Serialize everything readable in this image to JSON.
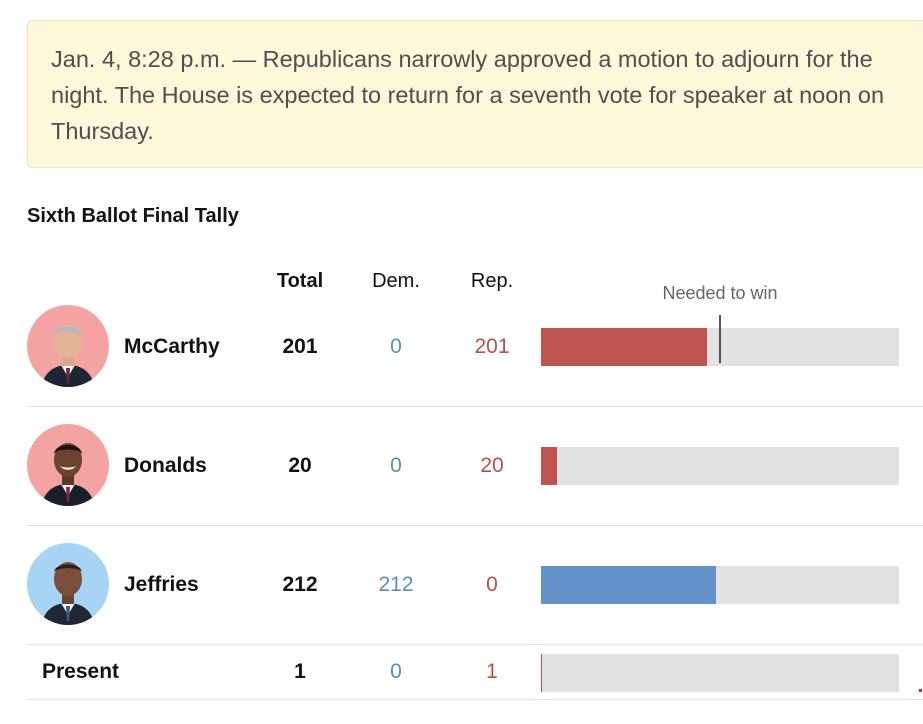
{
  "update": {
    "text": "Jan. 4, 8:28 p.m. — Republicans narrowly approved a motion to adjourn for the night. The House is expected to return for a seventh vote for speaker at noon on Thursday."
  },
  "tally": {
    "title": "Sixth Ballot Final Tally",
    "headers": {
      "total": "Total",
      "dem": "Dem.",
      "rep": "Rep."
    },
    "needed_label": "Needed to win",
    "needed_fraction": 0.5,
    "colors": {
      "dem": "#6392c8",
      "rep": "#bf5350",
      "track": "#e1e1e1"
    },
    "candidates": [
      {
        "name": "McCarthy",
        "total": "201",
        "dem": "0",
        "rep": "201",
        "share": 0.4644,
        "party": "rep",
        "avatar_bg": "#f4a3a3"
      },
      {
        "name": "Donalds",
        "total": "20",
        "dem": "0",
        "rep": "20",
        "share": 0.046,
        "party": "rep",
        "avatar_bg": "#f4a3a3"
      },
      {
        "name": "Jeffries",
        "total": "212",
        "dem": "212",
        "rep": "0",
        "share": 0.488,
        "party": "dem",
        "avatar_bg": "#a7d4f4"
      }
    ],
    "present": {
      "name": "Present",
      "total": "1",
      "dem": "0",
      "rep": "1",
      "share": 0.003,
      "party": "rep"
    }
  }
}
